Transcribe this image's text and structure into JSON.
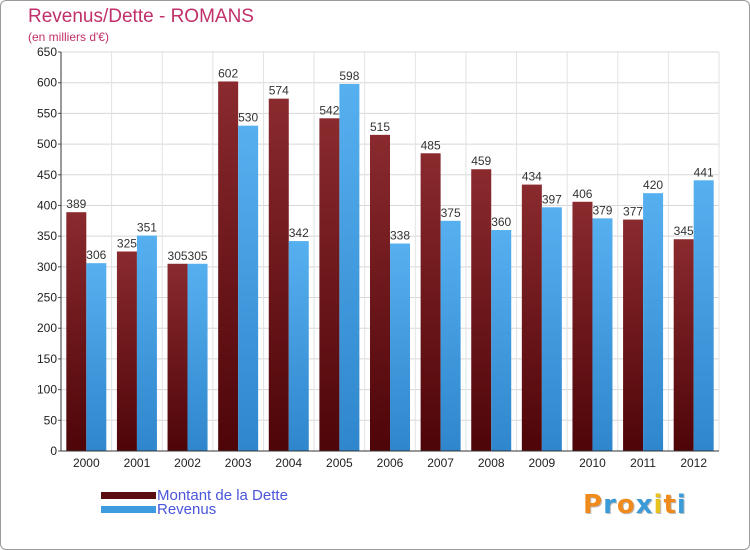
{
  "chart_data": {
    "type": "bar",
    "title": "Revenus/Dette - ROMANS",
    "unit_label": "(en milliers d'€)",
    "categories": [
      "2000",
      "2001",
      "2002",
      "2003",
      "2004",
      "2005",
      "2006",
      "2007",
      "2008",
      "2009",
      "2010",
      "2011",
      "2012"
    ],
    "series": [
      {
        "name": "Montant de la Dette",
        "color": "#7a1a1e",
        "values": [
          389,
          325,
          305,
          602,
          574,
          542,
          515,
          485,
          459,
          434,
          406,
          377,
          345
        ]
      },
      {
        "name": "Revenus",
        "color": "#4aa3e8",
        "values": [
          306,
          351,
          305,
          530,
          342,
          598,
          338,
          375,
          360,
          397,
          379,
          420,
          441
        ]
      }
    ],
    "ylim": [
      0,
      650
    ],
    "yticks": [
      0,
      50,
      100,
      150,
      200,
      250,
      300,
      350,
      400,
      450,
      500,
      550,
      600,
      650
    ],
    "grid": true,
    "legend_position": "bottom-left"
  },
  "logo": {
    "letters": [
      "P",
      "r",
      "o",
      "x",
      "i",
      "t",
      "i"
    ],
    "colors": [
      "#f08a1c",
      "#3a9bd8",
      "#f08a1c",
      "#3a9bd8",
      "#e8c21c",
      "#f08a1c",
      "#3a9bd8"
    ]
  }
}
